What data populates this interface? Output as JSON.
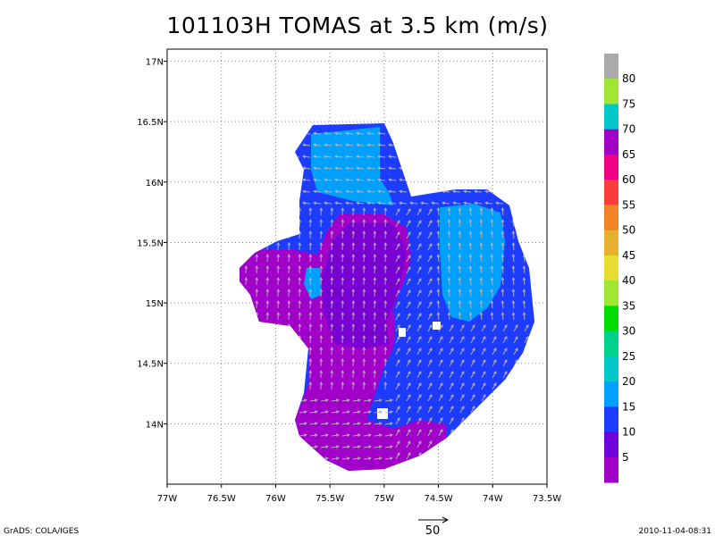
{
  "title": "101103H TOMAS at 3.5 km (m/s)",
  "map": {
    "lon_range": [
      -77,
      -73.5
    ],
    "lat_range": [
      13.5,
      17.1
    ],
    "x_tick_labels": [
      "77W",
      "76.5W",
      "76W",
      "75.5W",
      "75W",
      "74.5W",
      "74W",
      "73.5W"
    ],
    "y_tick_labels": [
      "14N",
      "14.5N",
      "15N",
      "15.5N",
      "16N",
      "16.5N",
      "17N"
    ],
    "grid": "dotted"
  },
  "colorbar": {
    "labels": [
      "5",
      "10",
      "15",
      "20",
      "25",
      "30",
      "35",
      "40",
      "45",
      "50",
      "55",
      "60",
      "65",
      "70",
      "75",
      "80"
    ],
    "colors": [
      "#a000c8",
      "#6e00dc",
      "#1e3cff",
      "#00a0ff",
      "#00c8c8",
      "#00d28c",
      "#00dc00",
      "#a0e632",
      "#e6dc32",
      "#e6af2d",
      "#f08228",
      "#fa3c3c",
      "#f00082",
      "#a000c8",
      "#00c8c8",
      "#a0e632",
      "#aaaaaa"
    ]
  },
  "wind_field": {
    "colors": {
      "band_5": "#a000c8",
      "band_10": "#6e00dc",
      "band_15": "#1e3cff",
      "band_20": "#00a0ff"
    },
    "vector_color": "#b4b4b4"
  },
  "reference_vector": {
    "value": "50"
  },
  "footer": {
    "left": "GrADS: COLA/IGES",
    "right": "2010-11-04-08:31"
  }
}
